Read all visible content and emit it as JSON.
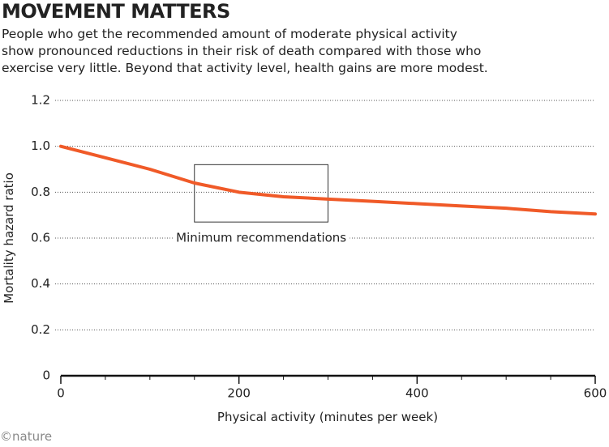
{
  "chart_data": {
    "type": "line",
    "title": "MOVEMENT MATTERS",
    "subtitle": [
      "People who get the recommended amount of moderate physical activity",
      "show pronounced reductions in their risk of death compared with those who",
      "exercise very little. Beyond that activity level, health gains are more modest."
    ],
    "x_label": "Physical activity (minutes per week)",
    "y_label": "Mortality hazard ratio",
    "credit": "©nature",
    "x": [
      0,
      50,
      100,
      150,
      200,
      250,
      300,
      350,
      400,
      450,
      500,
      550,
      600
    ],
    "series": [
      {
        "name": "Mortality hazard ratio",
        "color": "#f05a28",
        "values": [
          1.0,
          0.95,
          0.9,
          0.84,
          0.8,
          0.78,
          0.77,
          0.76,
          0.75,
          0.74,
          0.73,
          0.715,
          0.705
        ]
      }
    ],
    "xlim": [
      0,
      600
    ],
    "xticks": [
      0,
      200,
      400,
      600
    ],
    "xminorticks": [
      50,
      100,
      150,
      250,
      300,
      350,
      450,
      500,
      550
    ],
    "ylim": [
      0,
      1.2
    ],
    "yticks": [
      0,
      0.2,
      0.4,
      0.6,
      0.8,
      {
        "value": 1,
        "label": "1.0"
      },
      1.2
    ],
    "grid": true,
    "annotation": {
      "text": "Minimum recommendations",
      "x": [
        150,
        300
      ],
      "y": [
        0.67,
        0.92
      ],
      "label_y": 0.6
    }
  }
}
